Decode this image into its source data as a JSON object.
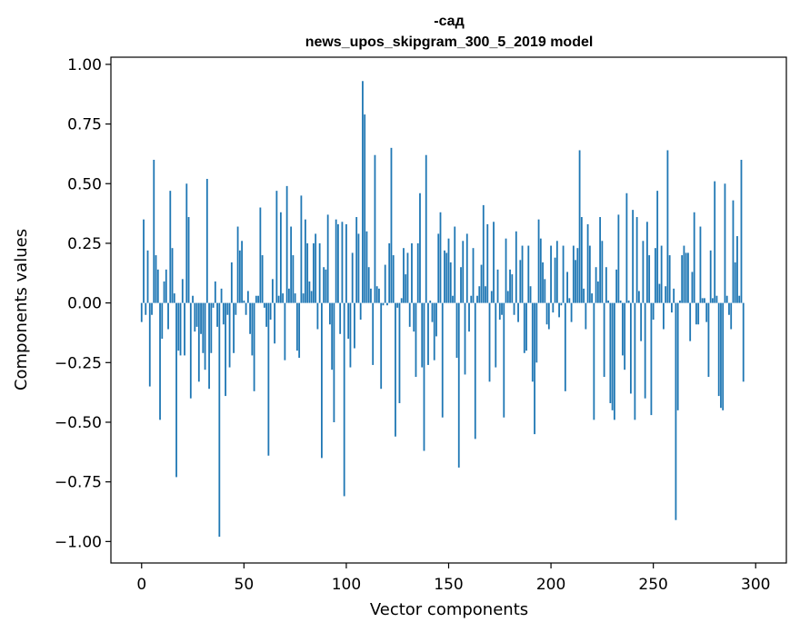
{
  "chart_data": {
    "type": "bar",
    "title": "-сад",
    "subtitle": "news_upos_skipgram_300_5_2019 model",
    "xlabel": "Vector components",
    "ylabel": "Components values",
    "xlim": [
      -15,
      315
    ],
    "ylim": [
      -1.09,
      1.03
    ],
    "xticks": [
      0,
      50,
      100,
      150,
      200,
      250,
      300
    ],
    "xtick_labels": [
      "0",
      "50",
      "100",
      "150",
      "200",
      "250",
      "300"
    ],
    "yticks": [
      1.0,
      0.75,
      0.5,
      0.25,
      0.0,
      -0.25,
      -0.5,
      -0.75,
      -1.0
    ],
    "ytick_labels": [
      "1.00",
      "0.75",
      "0.50",
      "0.25",
      "0.00",
      "−0.25",
      "−0.50",
      "−0.75",
      "−1.00"
    ],
    "bar_color": "#1f77b4",
    "values": [
      -0.08,
      0.35,
      -0.05,
      0.22,
      -0.35,
      -0.05,
      0.6,
      0.2,
      0.14,
      -0.49,
      -0.15,
      0.09,
      0.14,
      -0.11,
      0.47,
      0.23,
      0.04,
      -0.73,
      -0.2,
      -0.22,
      0.1,
      -0.22,
      0.5,
      0.36,
      -0.4,
      0.03,
      -0.12,
      -0.1,
      -0.33,
      -0.13,
      -0.21,
      -0.28,
      0.52,
      -0.36,
      -0.21,
      -0.02,
      0.09,
      -0.1,
      -0.98,
      0.06,
      -0.09,
      -0.39,
      -0.05,
      -0.27,
      0.17,
      -0.21,
      -0.05,
      0.32,
      0.22,
      0.26,
      0.01,
      -0.05,
      0.05,
      -0.13,
      -0.22,
      -0.37,
      0.03,
      0.03,
      0.4,
      0.2,
      -0.02,
      -0.1,
      -0.64,
      -0.07,
      0.1,
      -0.17,
      0.47,
      0.03,
      0.38,
      0.04,
      -0.24,
      0.49,
      0.06,
      0.32,
      0.2,
      0.04,
      -0.2,
      -0.23,
      0.45,
      0.04,
      0.35,
      0.25,
      0.09,
      0.05,
      0.25,
      0.29,
      -0.11,
      0.25,
      -0.65,
      0.15,
      0.14,
      0.37,
      -0.09,
      -0.28,
      -0.5,
      0.35,
      0.33,
      -0.13,
      0.34,
      -0.81,
      0.33,
      -0.15,
      -0.27,
      0.21,
      -0.19,
      0.36,
      0.29,
      -0.07,
      0.93,
      0.79,
      0.3,
      0.15,
      0.06,
      -0.26,
      0.62,
      0.07,
      0.06,
      -0.36,
      -0.01,
      0.16,
      -0.01,
      0.25,
      0.65,
      0.2,
      -0.56,
      -0.02,
      -0.42,
      0.02,
      0.23,
      0.12,
      0.21,
      -0.1,
      0.25,
      -0.12,
      -0.31,
      0.25,
      0.46,
      -0.27,
      -0.62,
      0.62,
      -0.26,
      0.01,
      -0.08,
      -0.24,
      -0.14,
      0.29,
      0.38,
      -0.48,
      0.22,
      0.21,
      0.27,
      0.17,
      0.03,
      0.32,
      -0.23,
      -0.69,
      0.15,
      0.26,
      -0.3,
      0.29,
      -0.12,
      0.03,
      0.23,
      -0.57,
      0.03,
      0.07,
      0.16,
      0.41,
      0.07,
      0.33,
      -0.33,
      0.05,
      0.34,
      -0.27,
      0.14,
      -0.07,
      -0.05,
      -0.48,
      0.27,
      0.05,
      0.14,
      0.12,
      -0.05,
      0.3,
      -0.08,
      0.18,
      0.24,
      -0.21,
      -0.2,
      0.24,
      0.07,
      -0.33,
      -0.55,
      -0.25,
      0.35,
      0.27,
      0.17,
      0.1,
      -0.09,
      -0.11,
      0.24,
      -0.04,
      0.19,
      0.26,
      -0.06,
      -0.01,
      0.24,
      -0.37,
      0.13,
      0.02,
      -0.08,
      0.24,
      0.18,
      0.23,
      0.64,
      0.36,
      0.06,
      -0.11,
      0.33,
      0.24,
      0.04,
      -0.49,
      0.15,
      0.09,
      0.36,
      0.26,
      -0.31,
      0.15,
      0.01,
      -0.42,
      -0.45,
      -0.49,
      0.14,
      0.37,
      0.01,
      -0.22,
      -0.28,
      0.46,
      0.01,
      -0.38,
      0.39,
      -0.49,
      0.36,
      0.05,
      -0.16,
      0.26,
      -0.4,
      0.34,
      0.2,
      -0.47,
      -0.07,
      0.23,
      0.47,
      0.08,
      0.24,
      -0.11,
      0.07,
      0.64,
      0.2,
      -0.04,
      0.06,
      -0.91,
      -0.45,
      0.01,
      0.2,
      0.24,
      0.21,
      0.21,
      -0.16,
      0.13,
      0.38,
      -0.09,
      -0.09,
      0.32,
      0.02,
      0.02,
      -0.08,
      -0.31,
      0.22,
      0.02,
      0.51,
      0.03,
      -0.39,
      -0.44,
      -0.45,
      0.5,
      0.03,
      -0.05,
      -0.11,
      0.43,
      0.17,
      0.28,
      0.03,
      0.6,
      -0.33
    ],
    "grid": false
  }
}
